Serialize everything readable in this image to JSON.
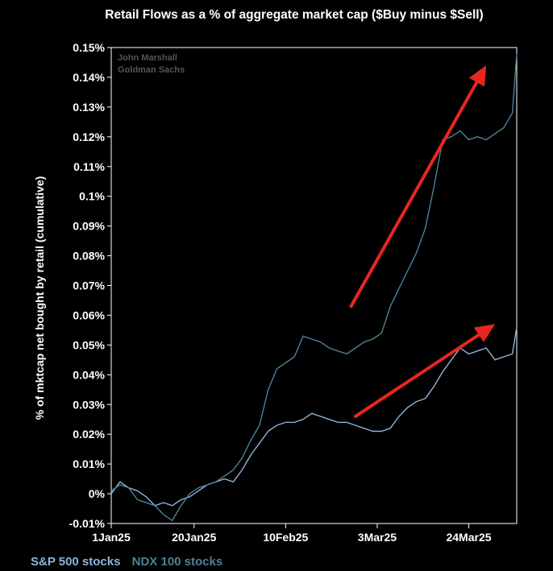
{
  "chart_data": {
    "type": "line",
    "title": "Retail Flows as a % of aggregate market cap ($Buy minus $Sell)",
    "xlabel": "",
    "ylabel": "% of mktcap net bought by retail (cumulative)",
    "ylim": [
      -0.01,
      0.15
    ],
    "y_ticks": [
      -0.01,
      0,
      0.01,
      0.02,
      0.03,
      0.04,
      0.05,
      0.06,
      0.07,
      0.08,
      0.09,
      0.1,
      0.11,
      0.12,
      0.13,
      0.14,
      0.15
    ],
    "y_tick_labels": [
      "-0.01%",
      "0%",
      "0.01%",
      "0.02%",
      "0.03%",
      "0.04%",
      "0.05%",
      "0.06%",
      "0.07%",
      "0.08%",
      "0.09%",
      "0.1%",
      "0.11%",
      "0.12%",
      "0.13%",
      "0.14%",
      "0.15%"
    ],
    "xlim": [
      0,
      93
    ],
    "x_ticks": [
      0,
      19,
      40,
      61,
      82
    ],
    "x_tick_labels": [
      "1Jan25",
      "20Jan25",
      "10Feb25",
      "3Mar25",
      "24Mar25"
    ],
    "watermark": [
      "John Marshall",
      "Goldman Sachs"
    ],
    "series": [
      {
        "name": "S&P 500 stocks",
        "color": "#8fb4d8",
        "x": [
          0,
          2,
          4,
          6,
          8,
          10,
          12,
          14,
          16,
          18,
          20,
          22,
          24,
          26,
          28,
          30,
          32,
          34,
          36,
          38,
          40,
          42,
          44,
          46,
          48,
          50,
          52,
          54,
          56,
          58,
          60,
          62,
          64,
          66,
          68,
          70,
          72,
          74,
          76,
          78,
          80,
          82,
          84,
          86,
          88,
          90,
          92,
          93
        ],
        "values": [
          0.0,
          0.004,
          0.002,
          0.001,
          -0.001,
          -0.004,
          -0.003,
          -0.004,
          -0.002,
          -0.001,
          0.001,
          0.003,
          0.004,
          0.005,
          0.004,
          0.008,
          0.013,
          0.017,
          0.021,
          0.023,
          0.024,
          0.024,
          0.025,
          0.027,
          0.026,
          0.025,
          0.024,
          0.024,
          0.023,
          0.022,
          0.021,
          0.021,
          0.022,
          0.026,
          0.029,
          0.031,
          0.032,
          0.036,
          0.041,
          0.045,
          0.049,
          0.047,
          0.048,
          0.049,
          0.045,
          0.046,
          0.047,
          0.056
        ]
      },
      {
        "name": "NDX 100 stocks",
        "color": "#4f8099",
        "x": [
          0,
          2,
          4,
          6,
          8,
          10,
          12,
          14,
          16,
          18,
          20,
          22,
          24,
          26,
          28,
          30,
          32,
          34,
          36,
          38,
          40,
          42,
          44,
          46,
          48,
          50,
          52,
          54,
          56,
          58,
          60,
          62,
          64,
          66,
          68,
          70,
          72,
          74,
          76,
          78,
          80,
          82,
          84,
          86,
          88,
          90,
          92,
          93
        ],
        "values": [
          0.001,
          0.003,
          0.002,
          -0.002,
          -0.003,
          -0.004,
          -0.007,
          -0.009,
          -0.004,
          0.0,
          0.002,
          0.003,
          0.004,
          0.006,
          0.008,
          0.012,
          0.018,
          0.023,
          0.035,
          0.042,
          0.044,
          0.046,
          0.053,
          0.052,
          0.051,
          0.049,
          0.048,
          0.047,
          0.049,
          0.051,
          0.052,
          0.054,
          0.063,
          0.069,
          0.075,
          0.081,
          0.089,
          0.103,
          0.119,
          0.12,
          0.122,
          0.119,
          0.12,
          0.119,
          0.121,
          0.123,
          0.128,
          0.148
        ]
      }
    ],
    "annotations": [
      {
        "type": "arrow",
        "color": "#e8261f",
        "from": [
          55,
          0.063
        ],
        "to": [
          86,
          0.144
        ]
      },
      {
        "type": "arrow",
        "color": "#e8261f",
        "from": [
          56,
          0.026
        ],
        "to": [
          88,
          0.057
        ]
      }
    ]
  }
}
